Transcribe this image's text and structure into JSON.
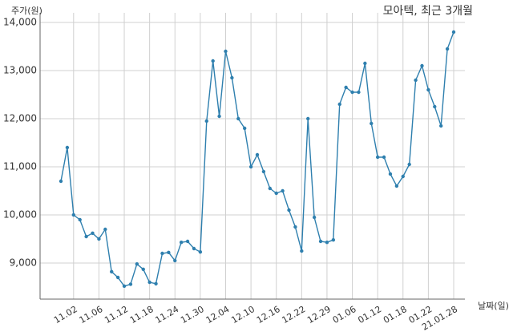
{
  "chart_data": {
    "type": "line",
    "title": "모아텍, 최근 3개월",
    "y_label": "주가(원)",
    "x_label": "날짜(일)",
    "categories": [
      null,
      null,
      "11.02",
      null,
      null,
      null,
      "11.06",
      null,
      null,
      null,
      "11.12",
      null,
      null,
      null,
      "11.18",
      null,
      null,
      null,
      "11.24",
      null,
      null,
      null,
      "11.30",
      null,
      null,
      null,
      "12.04",
      null,
      null,
      null,
      "12.10",
      null,
      null,
      null,
      "12.16",
      null,
      null,
      null,
      "12.22",
      null,
      null,
      null,
      "12.29",
      null,
      null,
      null,
      "01.06",
      null,
      null,
      null,
      "01.12",
      null,
      null,
      null,
      "01.18",
      null,
      null,
      null,
      "01.22",
      null,
      null,
      null,
      "21.01.28"
    ],
    "values": [
      10700,
      11400,
      10000,
      9900,
      9550,
      9620,
      9500,
      9700,
      8820,
      8700,
      8520,
      8560,
      8980,
      8870,
      8600,
      8570,
      9200,
      9220,
      9050,
      9430,
      9450,
      9300,
      9230,
      11950,
      13200,
      12050,
      13400,
      12850,
      12000,
      11800,
      11000,
      11250,
      10900,
      10550,
      10450,
      10500,
      10100,
      9750,
      9250,
      12000,
      9950,
      9450,
      9430,
      9480,
      12300,
      12650,
      12550,
      12550,
      13150,
      11900,
      11200,
      11200,
      10850,
      10600,
      10800,
      11050,
      12800,
      13100,
      12600,
      12250,
      11850,
      13450,
      13800
    ],
    "color": "#2e7fae",
    "ylim": [
      8250,
      14000
    ],
    "yticks": [
      {
        "value": 9000,
        "label": "9,000"
      },
      {
        "value": 10000,
        "label": "10,000"
      },
      {
        "value": 11000,
        "label": "11,000"
      },
      {
        "value": 12000,
        "label": "12,000"
      },
      {
        "value": 13000,
        "label": "13,000"
      },
      {
        "value": 14000,
        "label": "14,000"
      }
    ],
    "grid": true
  }
}
